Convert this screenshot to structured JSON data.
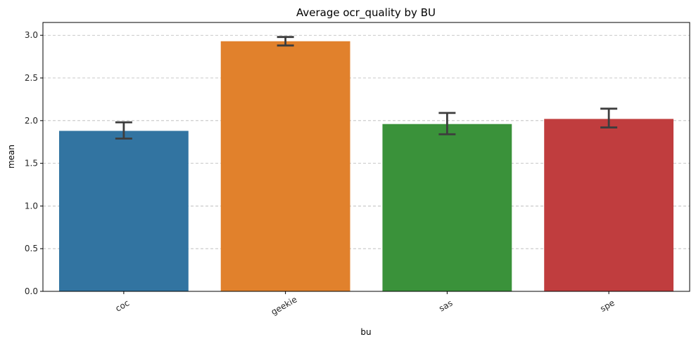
{
  "chart_data": {
    "type": "bar",
    "title": "Average ocr_quality by BU",
    "xlabel": "bu",
    "ylabel": "mean",
    "categories": [
      "coc",
      "geekie",
      "sas",
      "spe"
    ],
    "values": [
      1.88,
      2.93,
      1.96,
      2.02
    ],
    "error_low": [
      1.79,
      2.88,
      1.84,
      1.92
    ],
    "error_high": [
      1.98,
      2.98,
      2.09,
      2.14
    ],
    "colors": [
      "#3274a1",
      "#e1812c",
      "#3a923a",
      "#c03d3e"
    ],
    "ylim": [
      0,
      3.15
    ],
    "yticks": [
      "0.0",
      "0.5",
      "1.0",
      "1.5",
      "2.0",
      "2.5",
      "3.0"
    ],
    "grid": true
  }
}
